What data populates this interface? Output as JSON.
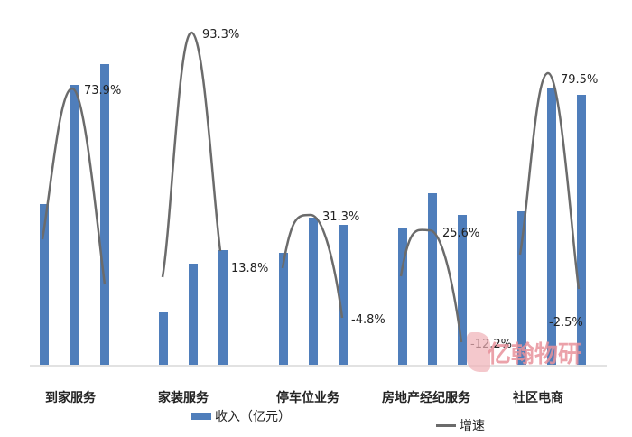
{
  "chart_data": {
    "type": "bar",
    "title": "",
    "xlabel": "",
    "ylabel": "",
    "categories": [
      "到家服务",
      "家装服务",
      "停车位业务",
      "房地产经纪服务",
      "社区电商"
    ],
    "series": [
      {
        "name": "收入（亿元）",
        "type": "bar",
        "color": "#4f7ebb",
        "values_per_category": [
          [
            178,
            310,
            333
          ],
          [
            58,
            112,
            127
          ],
          [
            124,
            163,
            155
          ],
          [
            151,
            190,
            166
          ],
          [
            170,
            307,
            299
          ]
        ],
        "note": "Three bars per category (consecutive periods); values are relative pixel heights, y-axis unlabeled"
      },
      {
        "name": "增速",
        "type": "line",
        "color": "#6b6b6b",
        "labels_per_category": [
          [
            "",
            "73.9%",
            ""
          ],
          [
            "",
            "93.3%",
            "13.8%"
          ],
          [
            "",
            "31.3%",
            "-4.8%"
          ],
          [
            "",
            "25.6%",
            "-12.2%"
          ],
          [
            "",
            "79.5%",
            "-2.5%"
          ]
        ],
        "values_per_category": [
          [
            null,
            73.9,
            null
          ],
          [
            null,
            93.3,
            13.8
          ],
          [
            null,
            31.3,
            -4.8
          ],
          [
            null,
            25.6,
            -12.2
          ],
          [
            null,
            79.5,
            -2.5
          ]
        ]
      }
    ],
    "grid": false,
    "legend_position": "bottom"
  },
  "legend": {
    "bar_label": "收入（亿元）",
    "line_label": "增速"
  },
  "watermark": {
    "text": "亿翰物研"
  },
  "colors": {
    "bar": "#4f7ebb",
    "line": "#6b6b6b",
    "axis": "#d9d9d9",
    "watermark": "#e8929c"
  }
}
